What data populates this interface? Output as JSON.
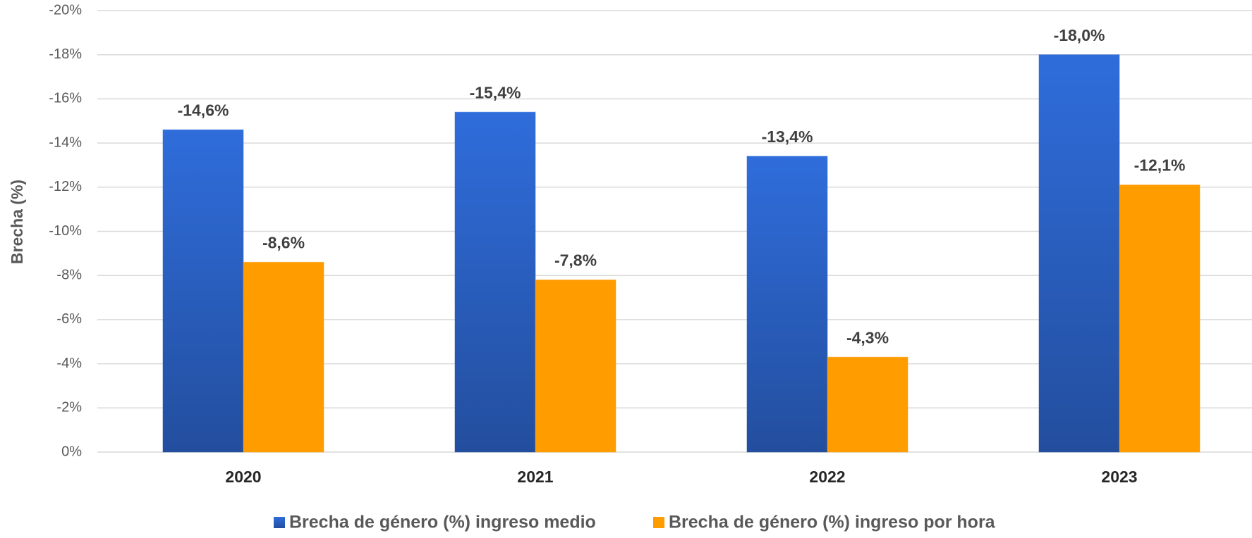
{
  "chart_data": {
    "type": "bar",
    "y_label": "Brecha (%)",
    "categories": [
      "2020",
      "2021",
      "2022",
      "2023"
    ],
    "series": [
      {
        "name": "Brecha de género (%) ingreso medio",
        "color": "#2c64c8",
        "values": [
          -14.6,
          -15.4,
          -13.4,
          -18.0
        ],
        "value_labels": [
          "-14,6%",
          "-15,4%",
          "-13,4%",
          "-18,0%"
        ]
      },
      {
        "name": "Brecha de género (%) ingreso por hora",
        "color": "#ff9c00",
        "values": [
          -8.6,
          -7.8,
          -4.3,
          -12.1
        ],
        "value_labels": [
          "-8,6%",
          "-7,8%",
          "-4,3%",
          "-12,1%"
        ]
      }
    ],
    "ylim": [
      0,
      -20
    ],
    "yticks": [
      {
        "value": 0,
        "label": "0%"
      },
      {
        "value": -2,
        "label": "-2%"
      },
      {
        "value": -4,
        "label": "-4%"
      },
      {
        "value": -6,
        "label": "-6%"
      },
      {
        "value": -8,
        "label": "-8%"
      },
      {
        "value": -10,
        "label": "-10%"
      },
      {
        "value": -12,
        "label": "-12%"
      },
      {
        "value": -14,
        "label": "-14%"
      },
      {
        "value": -16,
        "label": "-16%"
      },
      {
        "value": -18,
        "label": "-18%"
      },
      {
        "value": -20,
        "label": "-20%"
      }
    ],
    "grid": true,
    "legend": "bottom"
  }
}
